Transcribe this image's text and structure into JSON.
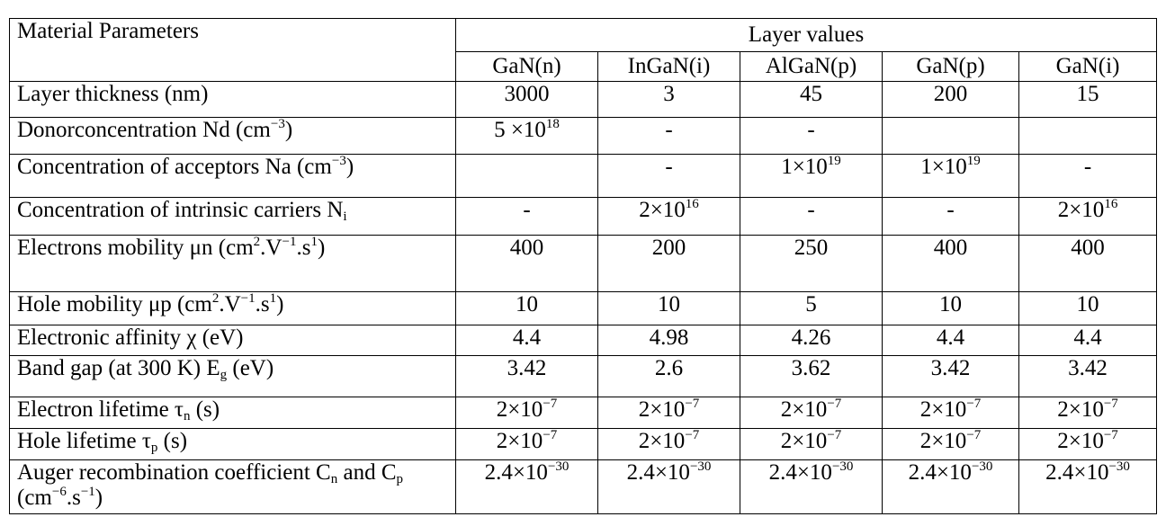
{
  "header": {
    "param_label": "Material Parameters",
    "group_label": "Layer values",
    "layers": [
      "GaN(n)",
      "InGaN(i)",
      "AlGaN(p)",
      "GaN(p)",
      "GaN(i)"
    ]
  },
  "rows": [
    {
      "label": "Layer thickness (nm)",
      "values": [
        "3000",
        "3",
        "45",
        "200",
        "15"
      ]
    },
    {
      "label": "Donorconcentration Nd (cm⁻³)",
      "values": [
        "5 ×10¹⁸",
        "-",
        "-",
        "",
        ""
      ]
    },
    {
      "label": "Concentration of acceptors Na (cm⁻³)",
      "values": [
        "",
        "-",
        "1×10¹⁹",
        "1×10¹⁹",
        "-"
      ]
    },
    {
      "label": "Concentration of intrinsic carriers Nᵢ",
      "values": [
        "-",
        "2×10¹⁶",
        "-",
        "-",
        "2×10¹⁶"
      ]
    },
    {
      "label": "Electrons mobility μn (cm².V⁻¹.s¹)",
      "values": [
        "400",
        "200",
        "250",
        "400",
        "400"
      ]
    },
    {
      "label": "Hole mobility μp (cm².V⁻¹.s¹)",
      "values": [
        "10",
        "10",
        "5",
        "10",
        "10"
      ]
    },
    {
      "label": "Electronic affinity χ (eV)",
      "values": [
        "4.4",
        "4.98",
        "4.26",
        "4.4",
        "4.4"
      ]
    },
    {
      "label": "Band gap (at 300 K) E_g (eV)",
      "values": [
        "3.42",
        "2.6",
        "3.62",
        "3.42",
        "3.42"
      ]
    },
    {
      "label": "Electron lifetime τₙ (s)",
      "values": [
        "2×10⁻⁷",
        "2×10⁻⁷",
        "2×10⁻⁷",
        "2×10⁻⁷",
        "2×10⁻⁷"
      ]
    },
    {
      "label": "Hole lifetime τₚ (s)",
      "values": [
        "2×10⁻⁷",
        "2×10⁻⁷",
        "2×10⁻⁷",
        "2×10⁻⁷",
        "2×10⁻⁷"
      ]
    },
    {
      "label": "Auger recombination coefficient Cₙ and Cₚ (cm⁻⁶.s⁻¹)",
      "values": [
        "2.4×10⁻³⁰",
        "2.4×10⁻³⁰",
        "2.4×10⁻³⁰",
        "2.4×10⁻³⁰",
        "2.4×10⁻³⁰"
      ]
    }
  ]
}
